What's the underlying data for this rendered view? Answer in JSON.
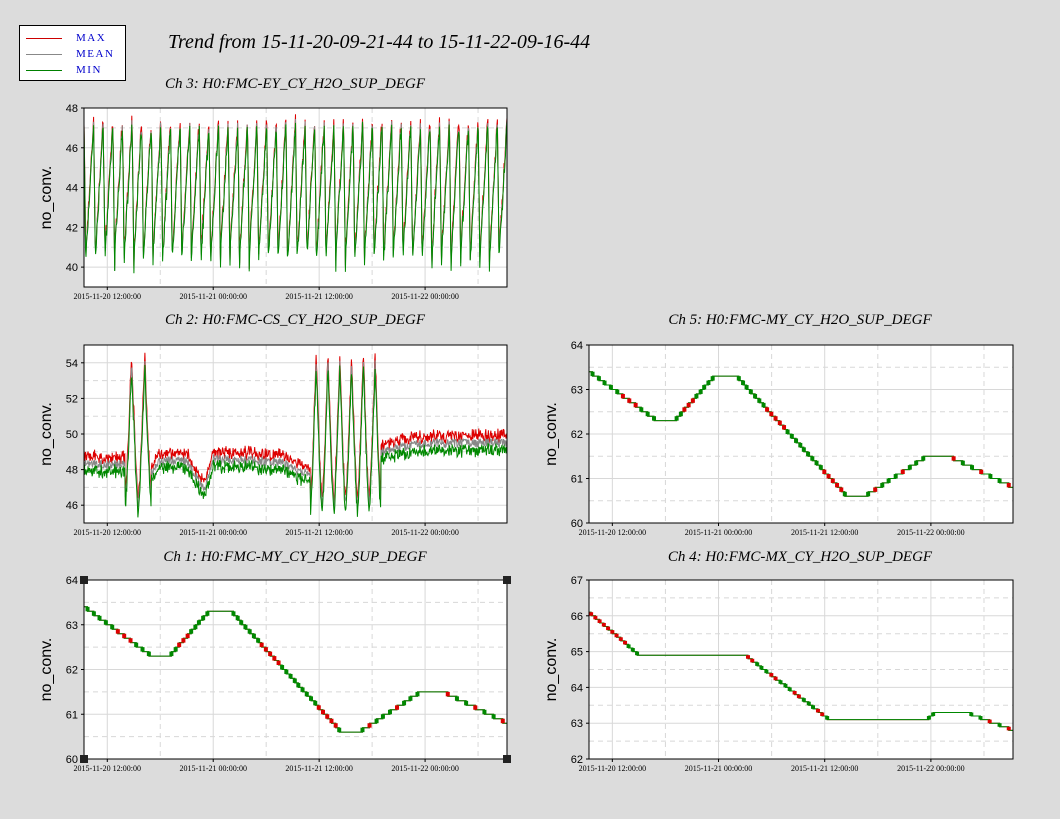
{
  "title": "Trend from 15-11-20-09-21-44 to 15-11-22-09-16-44",
  "legend": [
    {
      "label": "MAX",
      "color": "#cc0000"
    },
    {
      "label": "MEAN",
      "color": "#888888"
    },
    {
      "label": "MIN",
      "color": "#008000"
    }
  ],
  "colors": {
    "max": "#dd0000",
    "mean": "#888888",
    "min": "#008800",
    "background": "#dcdcdc"
  },
  "chart_data": [
    {
      "id": "ch3",
      "type": "line",
      "title": "Ch 3: H0:FMC-EY_CY_H2O_SUP_DEGF",
      "ylabel": "no_conv.",
      "ylim": [
        39,
        48
      ],
      "yticks": [
        40,
        42,
        44,
        46,
        48
      ],
      "xlim": [
        "2015-11-20 09:21:44",
        "2015-11-22 09:16:44"
      ],
      "xticks": [
        "2015-11-20 12:00:00",
        "2015-11-21 00:00:00",
        "2015-11-21 12:00:00",
        "2015-11-22 00:00:00"
      ],
      "grid": true,
      "pattern": "sawtooth",
      "cycles": 44,
      "low": 40.6,
      "high": 47.3,
      "spread": 0.3,
      "series": [
        {
          "name": "MAX"
        },
        {
          "name": "MEAN"
        },
        {
          "name": "MIN"
        }
      ]
    },
    {
      "id": "ch2",
      "type": "line",
      "title": "Ch 2: H0:FMC-CS_CY_H2O_SUP_DEGF",
      "ylabel": "no_conv.",
      "ylim": [
        45,
        55
      ],
      "yticks": [
        46,
        48,
        50,
        52,
        54
      ],
      "xlim": [
        "2015-11-20 09:21:44",
        "2015-11-22 09:16:44"
      ],
      "xticks": [
        "2015-11-20 12:00:00",
        "2015-11-21 00:00:00",
        "2015-11-21 12:00:00",
        "2015-11-22 00:00:00"
      ],
      "grid": true,
      "pattern": "noisy",
      "spread": 0.4,
      "trend": [
        {
          "t": "2015-11-20 09:21:44",
          "y": 48.3
        },
        {
          "t": "2015-11-20 14:00:00",
          "y": 48.3
        },
        {
          "t": "2015-11-20 16:00:00",
          "y": 47.0
        },
        {
          "t": "2015-11-20 18:00:00",
          "y": 48.5
        },
        {
          "t": "2015-11-20 21:00:00",
          "y": 48.5
        },
        {
          "t": "2015-11-20 23:00:00",
          "y": 46.8
        },
        {
          "t": "2015-11-21 00:00:00",
          "y": 48.6
        },
        {
          "t": "2015-11-21 08:00:00",
          "y": 48.4
        },
        {
          "t": "2015-11-21 10:00:00",
          "y": 47.8
        },
        {
          "t": "2015-11-21 19:00:00",
          "y": 49.0
        },
        {
          "t": "2015-11-22 00:00:00",
          "y": 49.5
        },
        {
          "t": "2015-11-22 09:16:44",
          "y": 49.5
        }
      ],
      "oscillations": [
        {
          "start": "2015-11-20 14:00:00",
          "end": "2015-11-20 17:00:00",
          "cycles": 2,
          "low": 46.0,
          "high": 54.2
        },
        {
          "start": "2015-11-21 11:00:00",
          "end": "2015-11-21 19:00:00",
          "cycles": 6,
          "low": 45.9,
          "high": 54.3
        }
      ],
      "series": [
        {
          "name": "MAX"
        },
        {
          "name": "MEAN"
        },
        {
          "name": "MIN"
        }
      ]
    },
    {
      "id": "ch5",
      "type": "line",
      "title": "Ch 5: H0:FMC-MY_CY_H2O_SUP_DEGF",
      "ylabel": "no_conv.",
      "ylim": [
        60,
        64
      ],
      "yticks": [
        60,
        61,
        62,
        63,
        64
      ],
      "xlim": [
        "2015-11-20 09:21:44",
        "2015-11-22 09:16:44"
      ],
      "xticks": [
        "2015-11-20 12:00:00",
        "2015-11-21 00:00:00",
        "2015-11-21 12:00:00",
        "2015-11-22 00:00:00"
      ],
      "grid": true,
      "pattern": "step",
      "quantum": 0.1,
      "points": [
        {
          "t": "2015-11-20 09:21:44",
          "y": 63.4
        },
        {
          "t": "2015-11-20 17:00:00",
          "y": 62.3
        },
        {
          "t": "2015-11-20 19:00:00",
          "y": 62.3
        },
        {
          "t": "2015-11-20 23:30:00",
          "y": 63.3
        },
        {
          "t": "2015-11-21 02:00:00",
          "y": 63.3
        },
        {
          "t": "2015-11-21 14:30:00",
          "y": 60.6
        },
        {
          "t": "2015-11-21 16:30:00",
          "y": 60.6
        },
        {
          "t": "2015-11-21 23:30:00",
          "y": 61.5
        },
        {
          "t": "2015-11-22 02:00:00",
          "y": 61.5
        },
        {
          "t": "2015-11-22 09:16:44",
          "y": 60.8
        }
      ],
      "series": [
        {
          "name": "MAX"
        },
        {
          "name": "MEAN"
        },
        {
          "name": "MIN"
        }
      ]
    },
    {
      "id": "ch1",
      "type": "line",
      "title": "Ch 1: H0:FMC-MY_CY_H2O_SUP_DEGF",
      "ylabel": "no_conv.",
      "ylim": [
        60,
        64
      ],
      "yticks": [
        60,
        61,
        62,
        63,
        64
      ],
      "xlim": [
        "2015-11-20 09:21:44",
        "2015-11-22 09:16:44"
      ],
      "xticks": [
        "2015-11-20 12:00:00",
        "2015-11-21 00:00:00",
        "2015-11-21 12:00:00",
        "2015-11-22 00:00:00"
      ],
      "grid": true,
      "pattern": "step",
      "quantum": 0.1,
      "selected": true,
      "points": [
        {
          "t": "2015-11-20 09:21:44",
          "y": 63.4
        },
        {
          "t": "2015-11-20 17:00:00",
          "y": 62.3
        },
        {
          "t": "2015-11-20 19:00:00",
          "y": 62.3
        },
        {
          "t": "2015-11-20 23:30:00",
          "y": 63.3
        },
        {
          "t": "2015-11-21 02:00:00",
          "y": 63.3
        },
        {
          "t": "2015-11-21 14:30:00",
          "y": 60.6
        },
        {
          "t": "2015-11-21 16:30:00",
          "y": 60.6
        },
        {
          "t": "2015-11-21 23:30:00",
          "y": 61.5
        },
        {
          "t": "2015-11-22 02:00:00",
          "y": 61.5
        },
        {
          "t": "2015-11-22 09:16:44",
          "y": 60.8
        }
      ],
      "series": [
        {
          "name": "MAX"
        },
        {
          "name": "MEAN"
        },
        {
          "name": "MIN"
        }
      ]
    },
    {
      "id": "ch4",
      "type": "line",
      "title": "Ch 4: H0:FMC-MX_CY_H2O_SUP_DEGF",
      "ylabel": "no_conv.",
      "ylim": [
        62,
        67
      ],
      "yticks": [
        62,
        63,
        64,
        65,
        66,
        67
      ],
      "xlim": [
        "2015-11-20 09:21:44",
        "2015-11-22 09:16:44"
      ],
      "xticks": [
        "2015-11-20 12:00:00",
        "2015-11-21 00:00:00",
        "2015-11-21 12:00:00",
        "2015-11-22 00:00:00"
      ],
      "grid": true,
      "pattern": "step",
      "quantum": 0.1,
      "points": [
        {
          "t": "2015-11-20 09:21:44",
          "y": 66.1
        },
        {
          "t": "2015-11-20 15:00:00",
          "y": 64.9
        },
        {
          "t": "2015-11-21 03:00:00",
          "y": 64.9
        },
        {
          "t": "2015-11-21 12:30:00",
          "y": 63.1
        },
        {
          "t": "2015-11-21 23:30:00",
          "y": 63.1
        },
        {
          "t": "2015-11-22 00:30:00",
          "y": 63.3
        },
        {
          "t": "2015-11-22 04:00:00",
          "y": 63.3
        },
        {
          "t": "2015-11-22 09:16:44",
          "y": 62.8
        }
      ],
      "series": [
        {
          "name": "MAX"
        },
        {
          "name": "MEAN"
        },
        {
          "name": "MIN"
        }
      ]
    }
  ]
}
